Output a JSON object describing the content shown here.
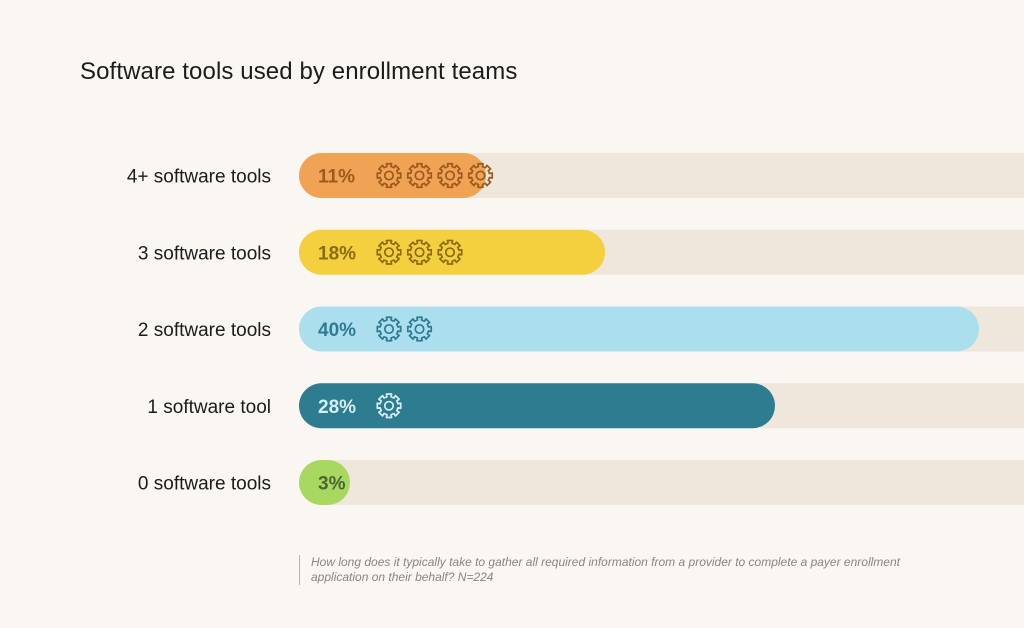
{
  "chart_data": {
    "type": "bar",
    "orientation": "horizontal",
    "title": "Software tools used by enrollment teams",
    "categories": [
      "4+ software tools",
      "3 software tools",
      "2 software tools",
      "1 software tool",
      "0 software tools"
    ],
    "values": [
      11,
      18,
      40,
      28,
      3
    ],
    "value_labels": [
      "11%",
      "18%",
      "40%",
      "28%",
      "3%"
    ],
    "icon_counts": [
      4,
      3,
      2,
      1,
      0
    ],
    "icon": "gear-icon",
    "xlim": [
      0,
      50
    ],
    "grid": false,
    "legend": "none",
    "colors": [
      "#f0a354",
      "#f4d03f",
      "#acdfee",
      "#2d7c8f",
      "#a9d861"
    ],
    "label_colors": [
      "#9c5a1f",
      "#8a6c12",
      "#2f7a94",
      "#d7eef4",
      "#4a6630"
    ],
    "track_color": "#efe7dc"
  },
  "footnote": "How long does it typically take to gather all required information from a provider to complete a payer enrollment application on their behalf? N=224"
}
